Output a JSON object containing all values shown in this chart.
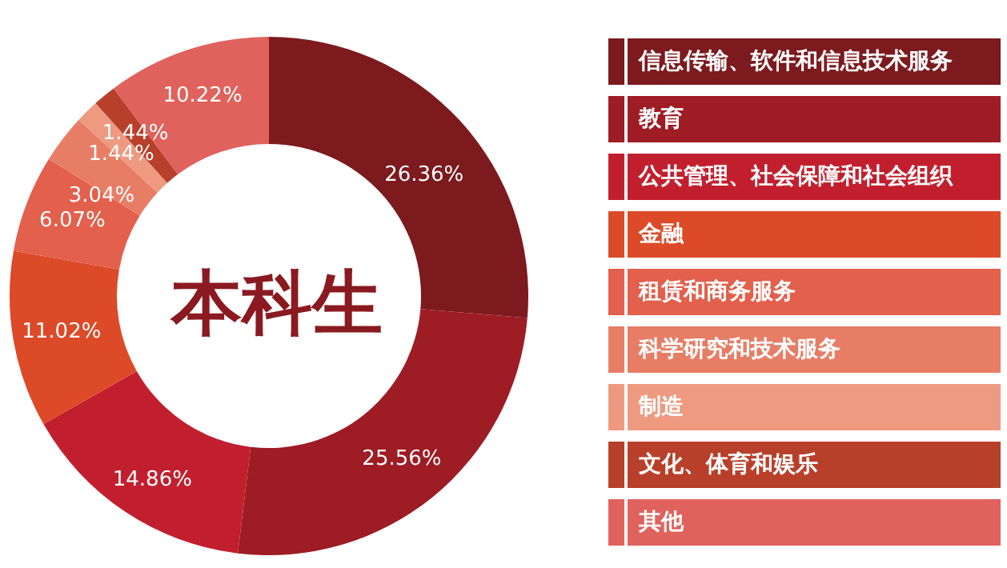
{
  "chart_data": {
    "type": "donut",
    "title": "本科生",
    "categories": [
      "信息传输、软件和信息技术服务",
      "教育",
      "公共管理、社会保障和社会组织",
      "金融",
      "租赁和商务服务",
      "科学研究和技术服务",
      "制造",
      "文化、体育和娱乐",
      "其他"
    ],
    "values": [
      26.36,
      25.56,
      14.86,
      11.02,
      6.07,
      3.04,
      1.44,
      1.44,
      10.22
    ],
    "value_labels": [
      "26.36%",
      "25.56%",
      "14.86%",
      "11.02%",
      "6.07%",
      "3.04%",
      "1.44%",
      "1.44%",
      "10.22%"
    ],
    "colors": [
      "#7c1a1e",
      "#9e1c24",
      "#c21f2e",
      "#dc4a28",
      "#e2604c",
      "#e87d66",
      "#ee9a80",
      "#b8402a",
      "#e0625c"
    ],
    "legend": "right"
  }
}
